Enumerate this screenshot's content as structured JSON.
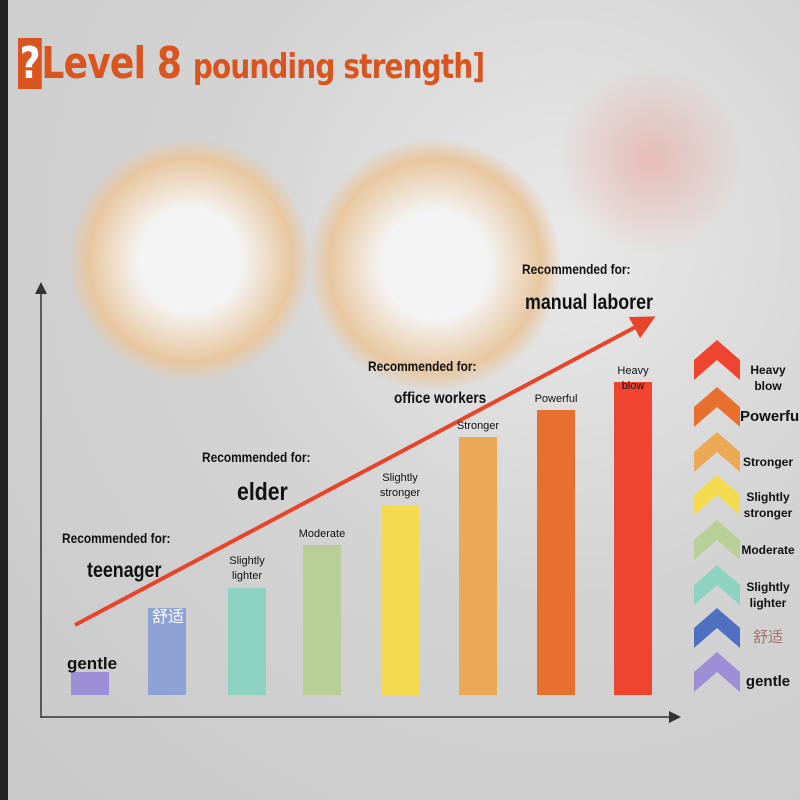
{
  "title": {
    "prefix": "?",
    "main": "Level 8",
    "sub": "pounding strength]"
  },
  "annotations": [
    {
      "label": "Recommended for:",
      "who": "teenager"
    },
    {
      "label": "Recommended for:",
      "who": "elder"
    },
    {
      "label": "Recommended for:",
      "who": "office workers"
    },
    {
      "label": "Recommended for:",
      "who": "manual laborer"
    }
  ],
  "legend": [
    "Heavy blow",
    "Powerful",
    "Stronger",
    "Slightly stronger",
    "Moderate",
    "Slightly lighter",
    "舒适",
    "gentle"
  ],
  "chart_data": {
    "type": "bar",
    "title": "",
    "categories": [
      "gentle",
      "舒适",
      "Slightly lighter",
      "Moderate",
      "Slightly stronger",
      "Stronger",
      "Powerful",
      "Heavy blow"
    ],
    "values": [
      1,
      2,
      3,
      4,
      5,
      6,
      7,
      8
    ],
    "colors": [
      "#9d8fd6",
      "#8ea2d6",
      "#8ed2c2",
      "#b9cf98",
      "#f3da4f",
      "#eca955",
      "#e8702f",
      "#ee4430"
    ],
    "legend_colors": [
      "#ee4430",
      "#e8702f",
      "#eca955",
      "#f3da4f",
      "#b9cf98",
      "#8ed2c2",
      "#4f70c0",
      "#9d8fd6"
    ],
    "trend_arrow_color": "#e8442a",
    "legend_position": "right",
    "grid": false
  }
}
